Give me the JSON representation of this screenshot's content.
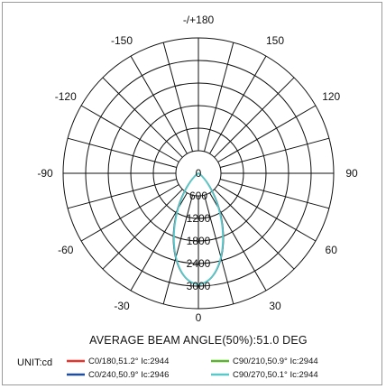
{
  "chart_data": {
    "type": "polar",
    "title": "",
    "subtitle": "AVERAGE BEAM ANGLE(50%):51.0 DEG",
    "unit_label": "UNIT:cd",
    "radial_ticks": [
      "0",
      "600",
      "1200",
      "1800",
      "2400",
      "3000"
    ],
    "radial_max": 3000,
    "angle_labels": {
      "top": "-/+180",
      "left": [
        "-150",
        "-120",
        "-90",
        "-60",
        "-30"
      ],
      "right": [
        "150",
        "120",
        "90",
        "60",
        "30"
      ],
      "bottom": "0"
    },
    "grid": true,
    "series": [
      {
        "name": "C0/180,51.2° Ic:2944",
        "color": "#e8342e",
        "peak": 2944,
        "beam_angle": 51.2
      },
      {
        "name": "C90/210,50.9° Ic:2944",
        "color": "#5cb531",
        "peak": 2944,
        "beam_angle": 50.9
      },
      {
        "name": "C0/240,50.9° Ic:2946",
        "color": "#1f4f9c",
        "peak": 2946,
        "beam_angle": 50.9
      },
      {
        "name": "C90/270,50.1° Ic:2944",
        "color": "#5ac8c8",
        "peak": 2944,
        "beam_angle": 50.1
      }
    ]
  }
}
